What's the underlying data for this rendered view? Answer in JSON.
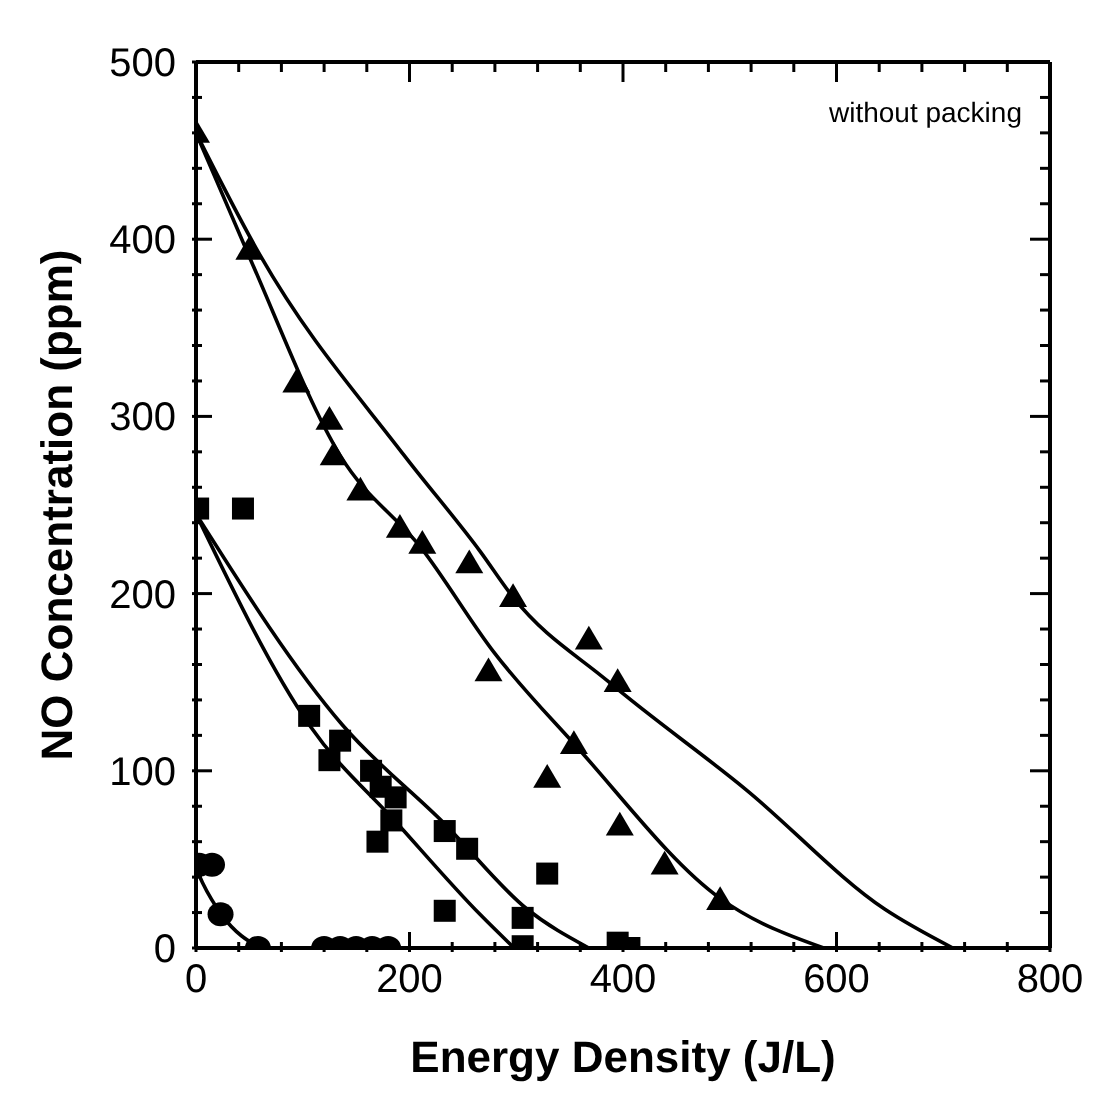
{
  "chart_data": {
    "type": "scatter",
    "xlabel": "Energy Density (J/L)",
    "ylabel": "NO Concentration (ppm)",
    "annotations": [
      "without packing"
    ],
    "xlim": [
      0,
      800
    ],
    "ylim": [
      0,
      500
    ],
    "xticks": [
      0,
      {
        "value": 40,
        "label": null
      },
      {
        "value": 80,
        "label": null
      },
      {
        "value": 120,
        "label": null
      },
      {
        "value": 160,
        "label": null
      },
      200,
      {
        "value": 240,
        "label": null
      },
      {
        "value": 280,
        "label": null
      },
      {
        "value": 320,
        "label": null
      },
      {
        "value": 360,
        "label": null
      },
      400,
      {
        "value": 440,
        "label": null
      },
      {
        "value": 480,
        "label": null
      },
      {
        "value": 520,
        "label": null
      },
      {
        "value": 560,
        "label": null
      },
      600,
      {
        "value": 640,
        "label": null
      },
      {
        "value": 680,
        "label": null
      },
      {
        "value": 720,
        "label": null
      },
      {
        "value": 760,
        "label": null
      },
      800
    ],
    "yticks": [
      0,
      {
        "value": 20,
        "label": null
      },
      {
        "value": 40,
        "label": null
      },
      {
        "value": 60,
        "label": null
      },
      {
        "value": 80,
        "label": null
      },
      100,
      {
        "value": 120,
        "label": null
      },
      {
        "value": 140,
        "label": null
      },
      {
        "value": 160,
        "label": null
      },
      {
        "value": 180,
        "label": null
      },
      200,
      {
        "value": 220,
        "label": null
      },
      {
        "value": 240,
        "label": null
      },
      {
        "value": 260,
        "label": null
      },
      {
        "value": 280,
        "label": null
      },
      300,
      {
        "value": 320,
        "label": null
      },
      {
        "value": 340,
        "label": null
      },
      {
        "value": 360,
        "label": null
      },
      {
        "value": 380,
        "label": null
      },
      400,
      {
        "value": 420,
        "label": null
      },
      {
        "value": 440,
        "label": null
      },
      {
        "value": 460,
        "label": null
      },
      {
        "value": 480,
        "label": null
      },
      500
    ],
    "grid": false,
    "legend": false,
    "series": [
      {
        "marker": "triangle",
        "color": "#000000",
        "x": [
          0,
          50,
          94,
          125,
          129,
          154,
          191,
          212,
          256,
          297,
          368,
          395,
          274,
          354,
          329,
          397,
          439,
          491
        ],
        "values": [
          460,
          394,
          319,
          298,
          278,
          258,
          237,
          228,
          217,
          198,
          174,
          150,
          156,
          115,
          96,
          69,
          47,
          27
        ]
      },
      {
        "marker": "square",
        "color": "#000000",
        "x": [
          2,
          44,
          106,
          135,
          125,
          164,
          173,
          187,
          183,
          170,
          233,
          254,
          329,
          233,
          306,
          306,
          395,
          406
        ],
        "values": [
          248,
          248,
          131,
          117,
          106,
          100,
          91,
          85,
          72,
          60,
          66,
          56,
          42,
          21,
          17,
          1,
          3,
          0
        ]
      },
      {
        "marker": "circle",
        "color": "#000000",
        "x": [
          3,
          15,
          23,
          58,
          120,
          135,
          150,
          165,
          180
        ],
        "values": [
          47,
          47,
          19,
          0,
          0,
          0,
          0,
          0,
          0
        ]
      },
      {
        "type": "line",
        "marker": "none",
        "line_style": "solid",
        "color": "#000000",
        "x": [
          0,
          60,
          195,
          266,
          297,
          387,
          516,
          645,
          709
        ],
        "values": [
          460,
          391,
          278,
          224,
          198,
          150,
          89,
          22,
          0
        ]
      },
      {
        "type": "line",
        "marker": "none",
        "line_style": "solid",
        "color": "#000000",
        "x": [
          0,
          50,
          135,
          212,
          279,
          356,
          491,
          588
        ],
        "values": [
          460,
          390,
          278,
          225,
          167,
          114,
          28,
          0
        ]
      },
      {
        "type": "line",
        "marker": "none",
        "line_style": "solid",
        "color": "#000000",
        "x": [
          0,
          137,
          233,
          310,
          368
        ],
        "values": [
          245,
          126,
          70,
          22,
          0
        ]
      },
      {
        "type": "line",
        "marker": "none",
        "line_style": "solid",
        "color": "#000000",
        "x": [
          0,
          106,
          189,
          266,
          298
        ],
        "values": [
          245,
          126,
          70,
          19,
          0
        ]
      },
      {
        "type": "line",
        "marker": "none",
        "line_style": "solid",
        "color": "#000000",
        "x": [
          0,
          6,
          25,
          60
        ],
        "values": [
          45,
          37,
          18,
          0
        ]
      }
    ]
  }
}
